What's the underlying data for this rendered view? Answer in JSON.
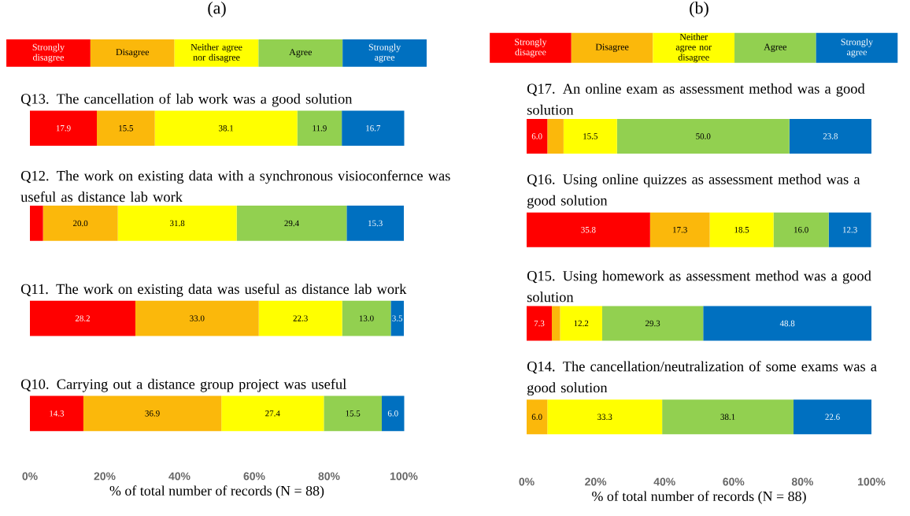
{
  "chart_data": [
    {
      "type": "bar",
      "title": "(a)",
      "xlabel": "% of total number of records (N = 88)",
      "orientation": "horizontal",
      "stacked": true,
      "legend": "top",
      "categories": [
        "Q13. The cancellation of lab work was a good solution",
        "Q12. The work on existing data with a synchronous visioconfernce was useful as distance lab work",
        "Q11. The work on existing data was useful as distance lab work",
        "Q10. Carrying out a distance group project was useful"
      ],
      "series": [
        {
          "name": "Strongly disagree",
          "color": "#ff0000",
          "values": [
            17.9,
            3.5,
            28.2,
            14.3
          ],
          "value_labels": [
            "17.9",
            null,
            "28.2",
            "14.3"
          ]
        },
        {
          "name": "Disagree",
          "color": "#fbb80b",
          "values": [
            15.5,
            20.0,
            33.0,
            36.9
          ],
          "value_labels": [
            "15.5",
            "20.0",
            "33.0",
            "36.9"
          ]
        },
        {
          "name": "Neither agree nor disagree",
          "color": "#ffff00",
          "values": [
            38.1,
            31.8,
            22.3,
            27.4
          ],
          "value_labels": [
            "38.1",
            "31.8",
            "22.3",
            "27.4"
          ]
        },
        {
          "name": "Agree",
          "color": "#92d050",
          "values": [
            11.9,
            29.4,
            13.0,
            15.5
          ],
          "value_labels": [
            "11.9",
            "29.4",
            "13.0",
            "15.5"
          ]
        },
        {
          "name": "Strongly agree",
          "color": "#0070c0",
          "values": [
            16.7,
            15.3,
            3.5,
            6.0
          ],
          "value_labels": [
            "16.7",
            "15.3",
            "3.5",
            "6.0"
          ]
        }
      ],
      "xlim": [
        0,
        100
      ],
      "xticks": [
        {
          "value": 0,
          "label": "0%"
        },
        {
          "value": 20,
          "label": "20%"
        },
        {
          "value": 40,
          "label": "40%"
        },
        {
          "value": 60,
          "label": "60%"
        },
        {
          "value": 80,
          "label": "80%"
        },
        {
          "value": 100,
          "label": "100%"
        }
      ]
    },
    {
      "type": "bar",
      "title": "(b)",
      "xlabel": "% of total number of records (N = 88)",
      "orientation": "horizontal",
      "stacked": true,
      "legend": "top",
      "categories": [
        "Q17. An online exam as assessment method was a good solution",
        "Q16. Using online quizzes as assessment method was a good solution",
        "Q15. Using homework as assessment method was a good solution",
        "Q14. The cancellation/neutralization of some exams was a good solution"
      ],
      "series": [
        {
          "name": "Strongly disagree",
          "color": "#ff0000",
          "values": [
            6.0,
            35.8,
            7.3,
            0
          ],
          "value_labels": [
            "6.0",
            "35.8",
            "7.3",
            null
          ]
        },
        {
          "name": "Disagree",
          "color": "#fbb80b",
          "values": [
            4.7,
            17.3,
            2.4,
            6.0
          ],
          "value_labels": [
            null,
            "17.3",
            null,
            "6.0"
          ]
        },
        {
          "name": "Neither agree nor disagree",
          "color": "#ffff00",
          "values": [
            15.5,
            18.5,
            12.2,
            33.3
          ],
          "value_labels": [
            "15.5",
            "18.5",
            "12.2",
            "33.3"
          ]
        },
        {
          "name": "Agree",
          "color": "#92d050",
          "values": [
            50.0,
            16.0,
            29.3,
            38.1
          ],
          "value_labels": [
            "50.0",
            "16.0",
            "29.3",
            "38.1"
          ]
        },
        {
          "name": "Strongly agree",
          "color": "#0070c0",
          "values": [
            23.8,
            12.3,
            48.8,
            22.6
          ],
          "value_labels": [
            "23.8",
            "12.3",
            "48.8",
            "22.6"
          ]
        }
      ],
      "xlim": [
        0,
        100
      ],
      "xticks": [
        {
          "value": 0,
          "label": "0%"
        },
        {
          "value": 20,
          "label": "20%"
        },
        {
          "value": 40,
          "label": "40%"
        },
        {
          "value": 60,
          "label": "60%"
        },
        {
          "value": 80,
          "label": "80%"
        },
        {
          "value": 100,
          "label": "100%"
        }
      ]
    }
  ]
}
